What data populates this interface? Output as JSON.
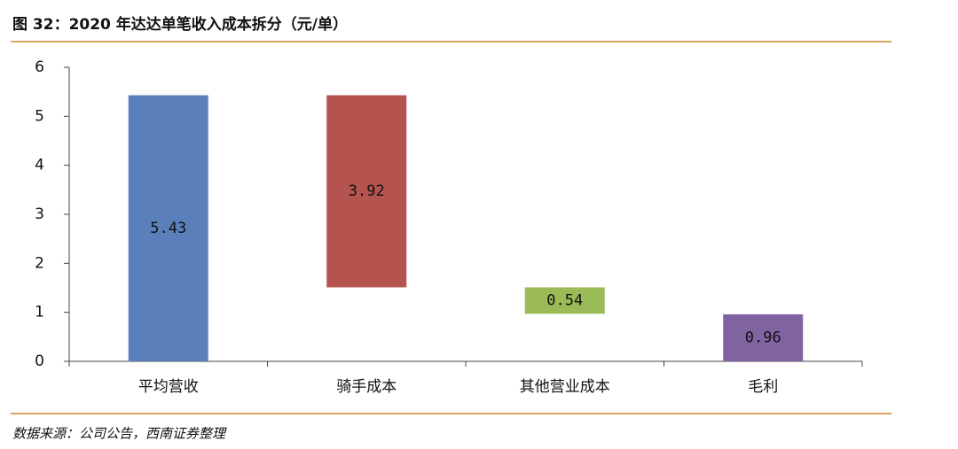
{
  "chart_data": {
    "type": "waterfall",
    "title": "图 32：2020 年达达单笔收入成本拆分（元/单）",
    "categories": [
      "平均营收",
      "骑手成本",
      "其他营业成本",
      "毛利"
    ],
    "values": [
      5.43,
      3.92,
      0.54,
      0.96
    ],
    "colors": [
      "#5b7fbb",
      "#b5534f",
      "#9bbb59",
      "#8064a2"
    ],
    "ylim": [
      0,
      6
    ],
    "yticks": [
      0,
      1,
      2,
      3,
      4,
      5,
      6
    ],
    "source": "数据来源：公司公告，西南证券整理"
  }
}
